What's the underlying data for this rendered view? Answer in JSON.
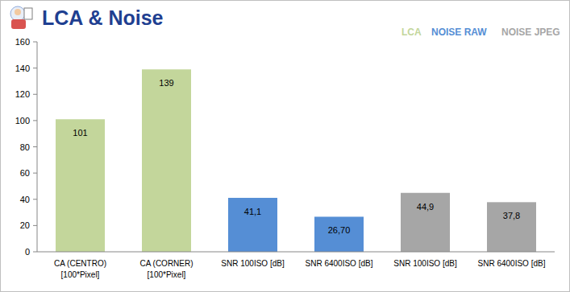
{
  "chart_data": {
    "type": "bar",
    "title": "LCA & Noise",
    "categories": [
      "CA (CENTRO)\n[100*Pixel]",
      "CA (CORNER)\n[100*Pixel]",
      "SNR 100ISO [dB]",
      "SNR 6400ISO [dB]",
      "SNR 100ISO [dB]",
      "SNR 6400ISO [dB]"
    ],
    "series": [
      {
        "name": "LCA",
        "color": "#c3d69b",
        "values": [
          101,
          139,
          null,
          null,
          null,
          null
        ],
        "value_labels": [
          "101",
          "139",
          null,
          null,
          null,
          null
        ]
      },
      {
        "name": "NOISE RAW",
        "color": "#558ed5",
        "values": [
          null,
          null,
          41.1,
          26.7,
          null,
          null
        ],
        "value_labels": [
          null,
          null,
          "41,1",
          "26,70",
          null,
          null
        ]
      },
      {
        "name": "NOISE JPEG",
        "color": "#a6a6a6",
        "values": [
          null,
          null,
          null,
          null,
          44.9,
          37.8
        ],
        "value_labels": [
          null,
          null,
          null,
          null,
          "44,9",
          "37,8"
        ]
      }
    ],
    "ylim": [
      0,
      160
    ],
    "yticks": [
      0,
      20,
      40,
      60,
      80,
      100,
      120,
      140,
      160
    ],
    "grid": false,
    "legend": "top-right",
    "data_labels": true
  }
}
